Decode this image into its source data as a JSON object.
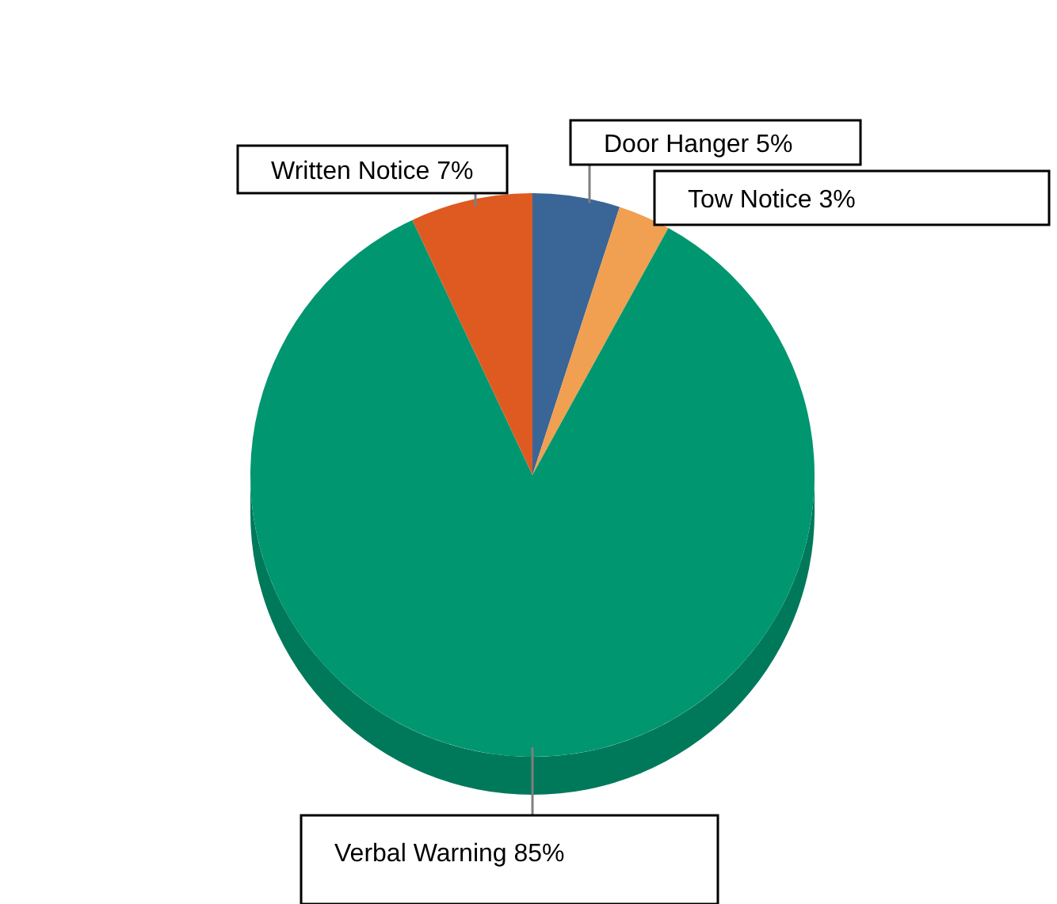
{
  "chart_data": {
    "type": "pie",
    "categories": [
      "Door Hanger",
      "Tow Notice",
      "Verbal Warning",
      "Written Notice"
    ],
    "values": [
      5,
      3,
      85,
      7
    ],
    "value_labels": [
      "5%",
      "3%",
      "85%",
      "7%"
    ],
    "colors": [
      "#3a6597",
      "#f0a050",
      "#009670",
      "#de5a21"
    ]
  }
}
